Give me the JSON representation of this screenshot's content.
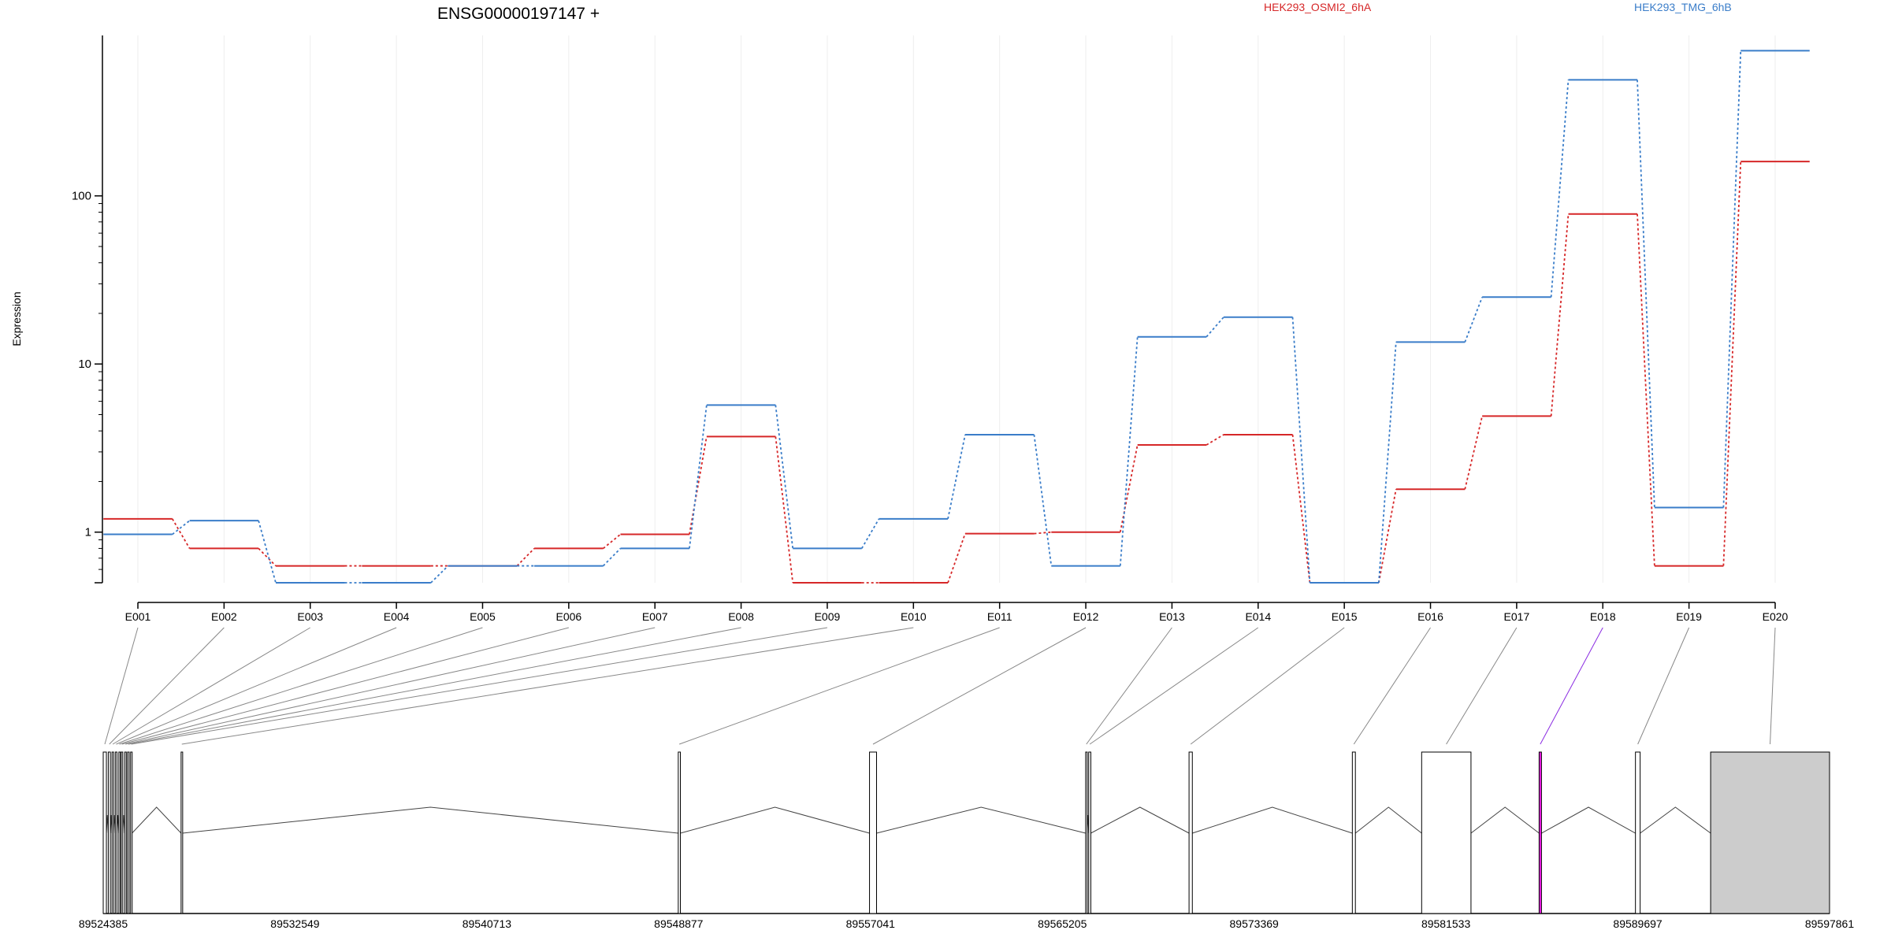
{
  "chart_data": {
    "type": "line",
    "title": "ENSG00000197147 +",
    "ylabel": "Expression",
    "y_scale": "log",
    "yticks": [
      "1",
      "10",
      "100"
    ],
    "ylim": [
      0.5,
      900
    ],
    "grid": true,
    "legend_placement": "top",
    "categories": [
      "E001",
      "E002",
      "E003",
      "E004",
      "E005",
      "E006",
      "E007",
      "E008",
      "E009",
      "E010",
      "E011",
      "E012",
      "E013",
      "E014",
      "E015",
      "E016",
      "E017",
      "E018",
      "E019",
      "E020"
    ],
    "series": [
      {
        "name": "HEK293_OSMI2_6hA",
        "color": "#d62728",
        "values": [
          1.2,
          0.8,
          0.63,
          0.63,
          0.63,
          0.8,
          0.97,
          3.7,
          0.5,
          0.5,
          0.98,
          1.0,
          3.3,
          3.8,
          0.5,
          1.8,
          4.9,
          78,
          0.63,
          160
        ]
      },
      {
        "name": "HEK293_TMG_6hB",
        "color": "#3a7dc9",
        "values": [
          0.97,
          1.17,
          0.5,
          0.5,
          0.63,
          0.63,
          0.8,
          5.7,
          0.8,
          1.2,
          3.8,
          0.63,
          14.5,
          19,
          0.5,
          13.5,
          25,
          490,
          1.4,
          730
        ]
      }
    ],
    "gene_model": {
      "coordinate_labels": [
        "89524385",
        "89532549",
        "89540713",
        "89548877",
        "89557041",
        "89565205",
        "89573369",
        "89581533",
        "89589697",
        "89597861"
      ],
      "coordinate_values": [
        89524385,
        89532549,
        89540713,
        89548877,
        89557041,
        89565205,
        89573369,
        89581533,
        89589697,
        89597861
      ],
      "highlighted_exon": "E018",
      "highlight_color": "#f01ce8",
      "last_exon_color": "#cccccc"
    }
  }
}
